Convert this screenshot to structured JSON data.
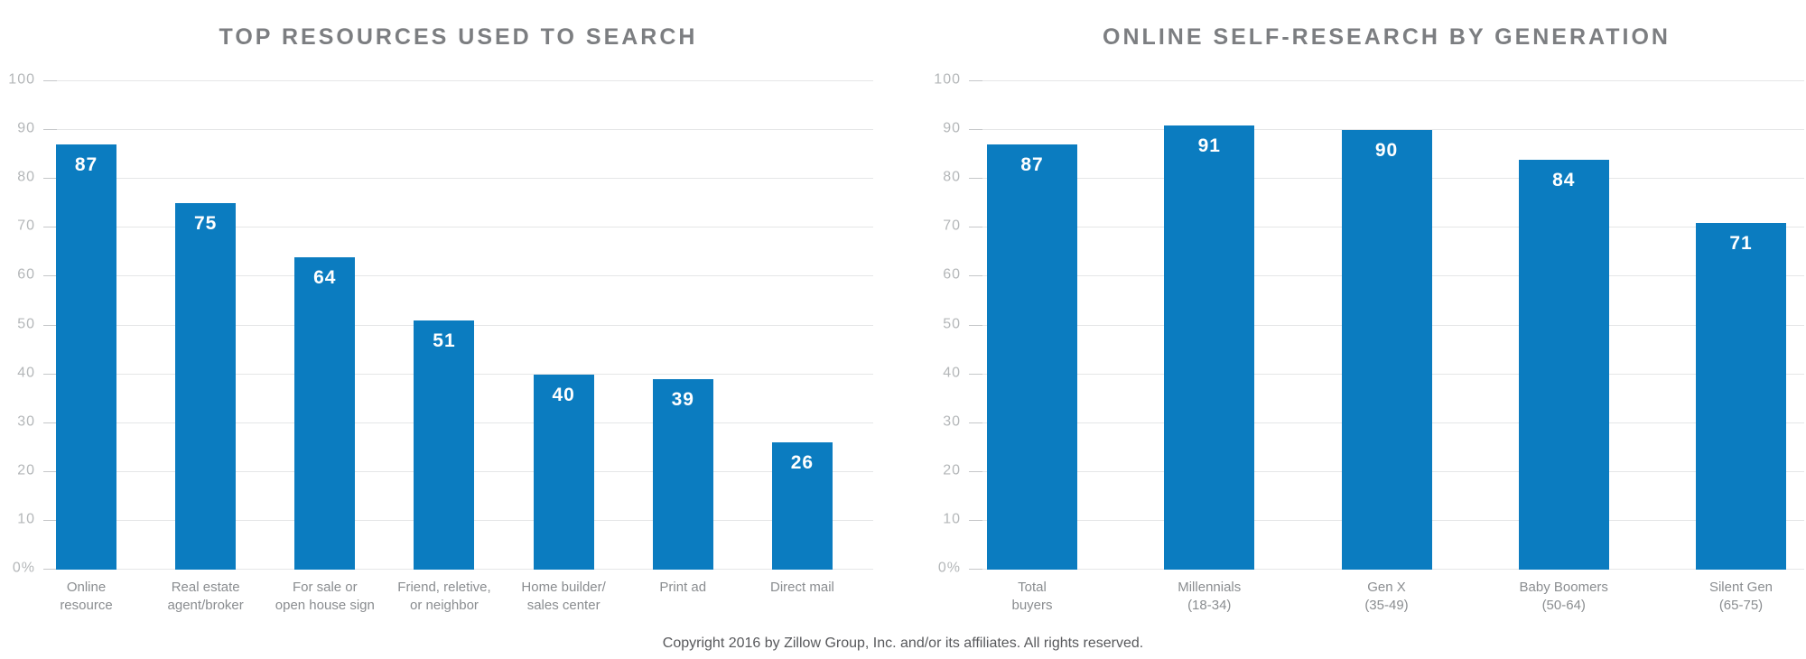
{
  "chart_data": [
    {
      "type": "bar",
      "title": "TOP RESOURCES USED TO SEARCH",
      "categories": [
        "Online\nresource",
        "Real estate\nagent/broker",
        "For sale or\nopen house sign",
        "Friend, reletive,\nor neighbor",
        "Home builder/\nsales center",
        "Print ad",
        "Direct mail"
      ],
      "values": [
        87,
        75,
        64,
        51,
        40,
        39,
        26
      ],
      "xlabel": "",
      "ylabel": "",
      "ylim": [
        0,
        100
      ],
      "ytick_values": [
        0,
        10,
        20,
        30,
        40,
        50,
        60,
        70,
        80,
        90,
        100
      ],
      "ytick_labels": [
        "0%",
        "10",
        "20",
        "30",
        "40",
        "50",
        "60",
        "70",
        "80",
        "90",
        "100"
      ],
      "grid": true,
      "legend": "none",
      "bar_color": "#0b7cc0",
      "value_label_color": "#ffffff"
    },
    {
      "type": "bar",
      "title": "ONLINE SELF-RESEARCH BY GENERATION",
      "categories": [
        "Total\nbuyers",
        "Millennials\n(18-34)",
        "Gen X\n(35-49)",
        "Baby Boomers\n(50-64)",
        "Silent Gen\n(65-75)"
      ],
      "values": [
        87,
        91,
        90,
        84,
        71
      ],
      "xlabel": "",
      "ylabel": "",
      "ylim": [
        0,
        100
      ],
      "ytick_values": [
        0,
        10,
        20,
        30,
        40,
        50,
        60,
        70,
        80,
        90,
        100
      ],
      "ytick_labels": [
        "0%",
        "10",
        "20",
        "30",
        "40",
        "50",
        "60",
        "70",
        "80",
        "90",
        "100"
      ],
      "grid": true,
      "legend": "none",
      "bar_color": "#0b7cc0",
      "value_label_color": "#ffffff"
    }
  ],
  "footer": {
    "copyright": "Copyright 2016 by Zillow Group, Inc. and/or its affiliates. All rights reserved."
  }
}
